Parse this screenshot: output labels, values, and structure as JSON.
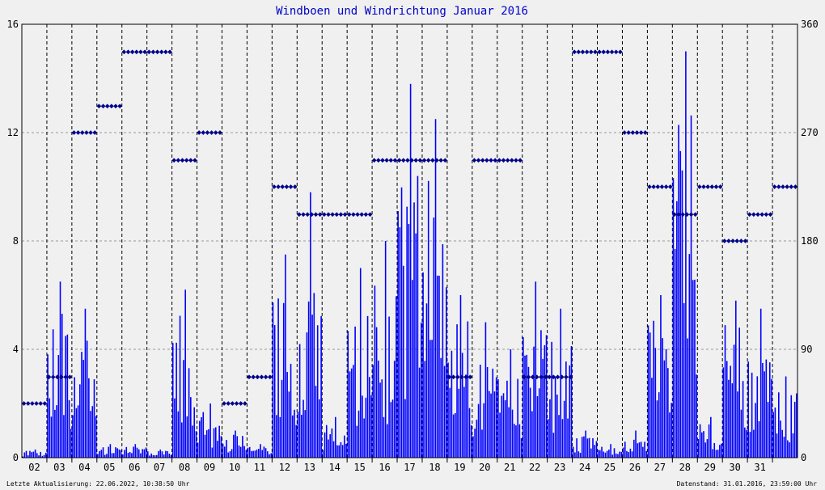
{
  "colors": {
    "background": "#f0f0f0",
    "series": "#0000ff",
    "grid": "#000000"
  },
  "footer": {
    "left": "Letzte Aktualisierung: 22.06.2022, 10:38:50 Uhr",
    "right": "Datenstand: 31.01.2016, 23:59:00 Uhr"
  },
  "chart_data": {
    "type": "bar",
    "title": "Windboen und Windrichtung Januar 2016",
    "xlabel": "",
    "ylabel": "",
    "ylim": [
      0,
      16
    ],
    "y2lim": [
      0,
      360
    ],
    "grid": true,
    "yticks": [
      "0",
      "4",
      "8",
      "12",
      "16"
    ],
    "y2ticks": [
      "0",
      "90",
      "180",
      "270",
      "360"
    ],
    "x_tick_labels": [
      "02",
      "03",
      "04",
      "05",
      "06",
      "07",
      "08",
      "09",
      "10",
      "11",
      "12",
      "13",
      "14",
      "15",
      "16",
      "17",
      "18",
      "19",
      "20",
      "21",
      "22",
      "23",
      "24",
      "25",
      "26",
      "27",
      "28",
      "29",
      "30",
      "31"
    ],
    "series": [
      {
        "type": "bar",
        "axis": "left",
        "note_days": "1..31",
        "daily_max": [
          0.3,
          6.5,
          5.5,
          0.5,
          0.5,
          0.3,
          6.2,
          2.0,
          1.0,
          0.5,
          7.5,
          9.8,
          1.5,
          7.0,
          8.0,
          13.8,
          12.5,
          6.0,
          5.0,
          4.0,
          6.5,
          5.5,
          1.0,
          0.5,
          1.0,
          6.0,
          15.0,
          1.5,
          5.8,
          5.5,
          3.0
        ]
      },
      {
        "type": "scatter",
        "axis": "right",
        "note_days": "1..31",
        "daily_direction": [
          45,
          67,
          270,
          292,
          337,
          337,
          247,
          270,
          45,
          67,
          225,
          202,
          202,
          202,
          247,
          247,
          247,
          67,
          247,
          247,
          67,
          67,
          337,
          337,
          270,
          225,
          202,
          225,
          180,
          202,
          225
        ]
      }
    ]
  }
}
